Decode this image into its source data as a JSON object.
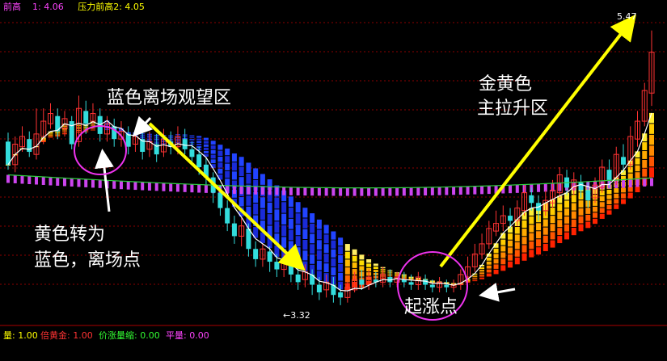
{
  "top_legend": {
    "item1_label": "前高",
    "item1_value": "1: 4.06",
    "item2": "压力前高2: 4.05"
  },
  "chart_data": {
    "type": "candlestick",
    "price_min_label": "←3.32",
    "price_max_label": "5.47",
    "ylim": [
      3.18,
      5.62
    ],
    "ohlc": [
      [
        4.6,
        4.42,
        4.67,
        4.38
      ],
      [
        4.42,
        4.58,
        4.64,
        4.36
      ],
      [
        4.56,
        4.64,
        4.72,
        4.52
      ],
      [
        4.62,
        4.52,
        4.68,
        4.48
      ],
      [
        4.5,
        4.66,
        4.86,
        4.46
      ],
      [
        4.64,
        4.76,
        4.86,
        4.58
      ],
      [
        4.74,
        4.82,
        4.9,
        4.7
      ],
      [
        4.8,
        4.68,
        4.86,
        4.62
      ],
      [
        4.7,
        4.78,
        4.84,
        4.64
      ],
      [
        4.76,
        4.58,
        4.8,
        4.54
      ],
      [
        4.6,
        4.86,
        4.96,
        4.56
      ],
      [
        4.84,
        4.74,
        4.92,
        4.66
      ],
      [
        4.76,
        4.82,
        4.9,
        4.7
      ],
      [
        4.8,
        4.66,
        4.86,
        4.6
      ],
      [
        4.66,
        4.74,
        4.8,
        4.6
      ],
      [
        4.72,
        4.62,
        4.78,
        4.56
      ],
      [
        4.62,
        4.68,
        4.76,
        4.56
      ],
      [
        4.66,
        4.56,
        4.72,
        4.5
      ],
      [
        4.58,
        4.64,
        4.7,
        4.52
      ],
      [
        4.62,
        4.52,
        4.68,
        4.46
      ],
      [
        4.54,
        4.6,
        4.68,
        4.48
      ],
      [
        4.58,
        4.5,
        4.66,
        4.44
      ],
      [
        4.52,
        4.62,
        4.7,
        4.48
      ],
      [
        4.6,
        4.56,
        4.68,
        4.5
      ],
      [
        4.56,
        4.64,
        4.72,
        4.5
      ],
      [
        4.62,
        4.54,
        4.7,
        4.5
      ],
      [
        4.54,
        4.48,
        4.6,
        4.44
      ],
      [
        4.5,
        4.4,
        4.56,
        4.34
      ],
      [
        4.42,
        4.32,
        4.48,
        4.26
      ],
      [
        4.32,
        4.2,
        4.36,
        4.12
      ],
      [
        4.2,
        4.08,
        4.26,
        4.02
      ],
      [
        4.08,
        3.96,
        4.14,
        3.9
      ],
      [
        3.96,
        3.86,
        4.02,
        3.8
      ],
      [
        3.86,
        3.94,
        4.0,
        3.78
      ],
      [
        3.92,
        3.76,
        3.96,
        3.7
      ],
      [
        3.76,
        3.68,
        3.82,
        3.62
      ],
      [
        3.68,
        3.76,
        3.8,
        3.62
      ],
      [
        3.74,
        3.66,
        3.78,
        3.58
      ],
      [
        3.66,
        3.6,
        3.72,
        3.54
      ],
      [
        3.6,
        3.66,
        3.72,
        3.54
      ],
      [
        3.64,
        3.56,
        3.7,
        3.5
      ],
      [
        3.56,
        3.5,
        3.62,
        3.44
      ],
      [
        3.52,
        3.58,
        3.64,
        3.46
      ],
      [
        3.56,
        3.48,
        3.6,
        3.4
      ],
      [
        3.48,
        3.42,
        3.54,
        3.36
      ],
      [
        3.44,
        3.5,
        3.56,
        3.38
      ],
      [
        3.48,
        3.4,
        3.54,
        3.34
      ],
      [
        3.42,
        3.38,
        3.48,
        3.32
      ],
      [
        3.38,
        3.46,
        3.5,
        3.34
      ],
      [
        3.44,
        3.52,
        3.58,
        3.42
      ],
      [
        3.52,
        3.48,
        3.6,
        3.44
      ],
      [
        3.48,
        3.54,
        3.6,
        3.44
      ],
      [
        3.52,
        3.5,
        3.58,
        3.46
      ],
      [
        3.5,
        3.56,
        3.62,
        3.46
      ],
      [
        3.54,
        3.5,
        3.6,
        3.46
      ],
      [
        3.5,
        3.54,
        3.58,
        3.46
      ],
      [
        3.52,
        3.5,
        3.58,
        3.46
      ],
      [
        3.5,
        3.48,
        3.56,
        3.44
      ],
      [
        3.48,
        3.54,
        3.58,
        3.44
      ],
      [
        3.52,
        3.48,
        3.56,
        3.44
      ],
      [
        3.48,
        3.46,
        3.52,
        3.42
      ],
      [
        3.46,
        3.5,
        3.54,
        3.42
      ],
      [
        3.48,
        3.46,
        3.52,
        3.42
      ],
      [
        3.46,
        3.48,
        3.52,
        3.42
      ],
      [
        3.48,
        3.56,
        3.6,
        3.44
      ],
      [
        3.54,
        3.62,
        3.7,
        3.5
      ],
      [
        3.62,
        3.72,
        3.8,
        3.58
      ],
      [
        3.72,
        3.8,
        3.88,
        3.68
      ],
      [
        3.8,
        3.92,
        3.98,
        3.76
      ],
      [
        3.9,
        3.96,
        4.06,
        3.86
      ],
      [
        3.96,
        4.02,
        4.1,
        3.9
      ],
      [
        4.02,
        3.98,
        4.08,
        3.92
      ],
      [
        3.98,
        4.08,
        4.14,
        3.94
      ],
      [
        4.06,
        4.2,
        4.26,
        4.02
      ],
      [
        4.18,
        4.12,
        4.24,
        4.06
      ],
      [
        4.12,
        4.06,
        4.18,
        3.98
      ],
      [
        4.06,
        4.14,
        4.22,
        4.02
      ],
      [
        4.12,
        4.22,
        4.3,
        4.08
      ],
      [
        4.2,
        4.34,
        4.4,
        4.16
      ],
      [
        4.32,
        4.24,
        4.38,
        4.18
      ],
      [
        4.24,
        4.3,
        4.36,
        4.18
      ],
      [
        4.28,
        4.22,
        4.34,
        4.16
      ],
      [
        4.22,
        4.14,
        4.28,
        4.08
      ],
      [
        4.16,
        4.26,
        4.32,
        4.12
      ],
      [
        4.24,
        4.4,
        4.46,
        4.2
      ],
      [
        4.38,
        4.3,
        4.46,
        4.24
      ],
      [
        4.3,
        4.5,
        4.56,
        4.26
      ],
      [
        4.48,
        4.42,
        4.58,
        4.36
      ],
      [
        4.42,
        4.64,
        4.72,
        4.38
      ],
      [
        4.62,
        4.76,
        4.84,
        4.56
      ],
      [
        4.76,
        5.0,
        5.06,
        4.72
      ],
      [
        4.98,
        5.3,
        5.47,
        4.88
      ]
    ],
    "ma_white_color": "#ffffff",
    "ma_purple_color": "#cc44ee",
    "ma_green_color": "#2ecc40"
  },
  "annotations": {
    "blue_exit_zone": "蓝色离场观望区",
    "yellow_to_blue_line1": "黄色转为",
    "yellow_to_blue_line2": "蓝色，离场点",
    "gold_main_line1": "金黄色",
    "gold_main_line2": "主拉升区",
    "rise_start": "起涨点"
  },
  "bottom_bar": {
    "vol_label": "量: 1.00",
    "dbl_gold_label": "倍黄金: 1.00",
    "price_vol_label": "价涨量缩: 0.00",
    "flat_vol_label": "平量: 0.00"
  }
}
